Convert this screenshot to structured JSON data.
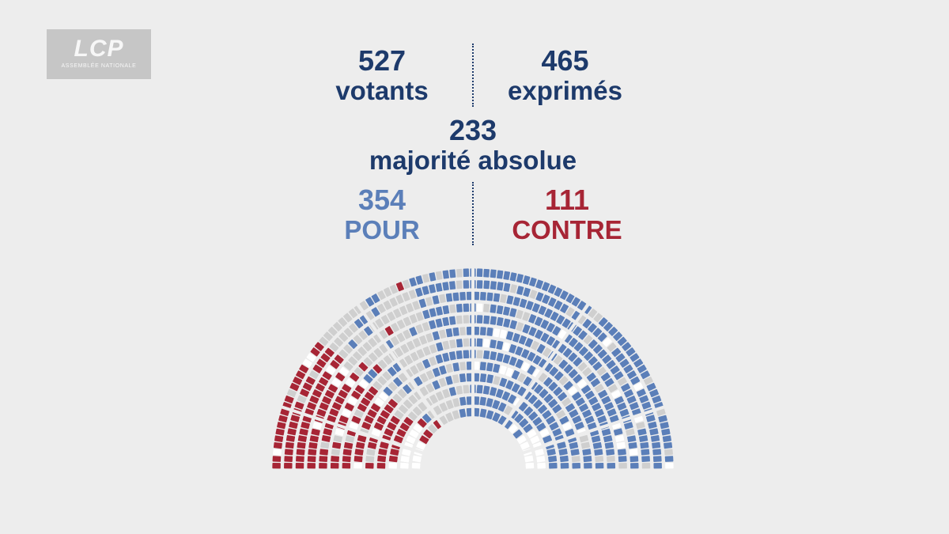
{
  "logo": {
    "main": "LCP",
    "sub": "ASSEMBLÉE NATIONALE"
  },
  "stats": {
    "votants": {
      "value": "527",
      "label": "votants"
    },
    "exprimes": {
      "value": "465",
      "label": "exprimés"
    },
    "majorite": {
      "value": "233",
      "label": "majorité absolue"
    },
    "pour": {
      "value": "354",
      "label": "POUR"
    },
    "contre": {
      "value": "111",
      "label": "CONTRE"
    }
  },
  "colors": {
    "pour": "#5b7fb9",
    "contre": "#a72535",
    "abstention": "#cfcfcf",
    "absent": "#ffffff",
    "text": "#1d3a6b",
    "background": "#ededed"
  },
  "chart_data": {
    "type": "hemicycle",
    "title": "",
    "series": [
      {
        "name": "POUR",
        "value": 354
      },
      {
        "name": "CONTRE",
        "value": 111
      }
    ],
    "votants": 527,
    "exprimes": 465,
    "majorite_absolue": 233
  }
}
